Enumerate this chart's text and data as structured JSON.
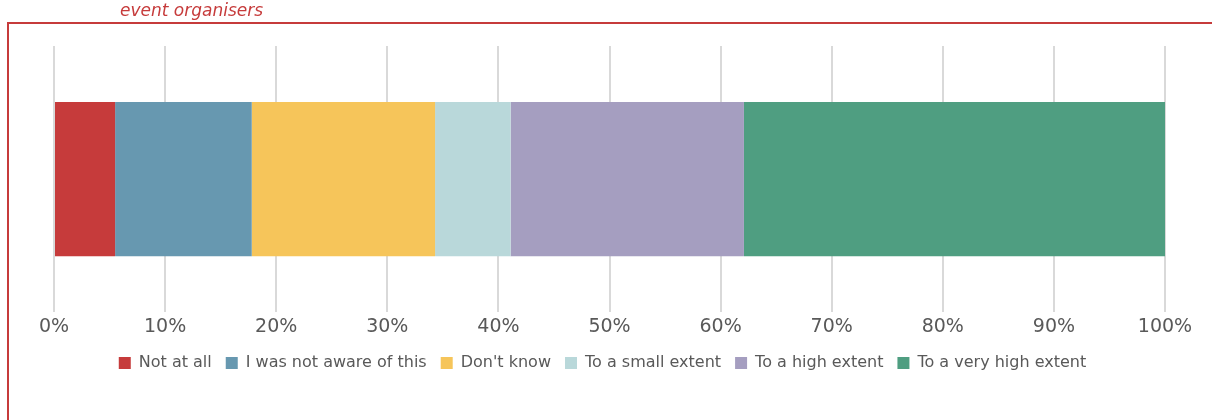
{
  "chart_data": {
    "type": "bar",
    "orientation": "horizontal",
    "stacked": true,
    "title": "event organisers",
    "categories": [
      null
    ],
    "series": [
      {
        "name": "Not at all",
        "color": "#c63b3b",
        "values": [
          5.5
        ]
      },
      {
        "name": "I was not aware of this",
        "color": "#6798b0",
        "values": [
          12.3
        ]
      },
      {
        "name": "Don't know",
        "color": "#f6c55a",
        "values": [
          16.5
        ]
      },
      {
        "name": "To a small extent",
        "color": "#b9d8da",
        "values": [
          6.8
        ]
      },
      {
        "name": "To a high extent",
        "color": "#a59ec0",
        "values": [
          21.0
        ]
      },
      {
        "name": "To a very high extent",
        "color": "#4f9e81",
        "values": [
          37.9
        ]
      }
    ],
    "xlim": [
      0,
      100
    ],
    "xticks": [
      {
        "value": 0,
        "label": "0%"
      },
      {
        "value": 10,
        "label": "10%"
      },
      {
        "value": 20,
        "label": "20%"
      },
      {
        "value": 30,
        "label": "30%"
      },
      {
        "value": 40,
        "label": "40%"
      },
      {
        "value": 50,
        "label": "50%"
      },
      {
        "value": 60,
        "label": "60%"
      },
      {
        "value": 70,
        "label": "70%"
      },
      {
        "value": 80,
        "label": "80%"
      },
      {
        "value": 90,
        "label": "90%"
      },
      {
        "value": 100,
        "label": "100%"
      }
    ],
    "grid": "x",
    "legend": "bottom"
  }
}
